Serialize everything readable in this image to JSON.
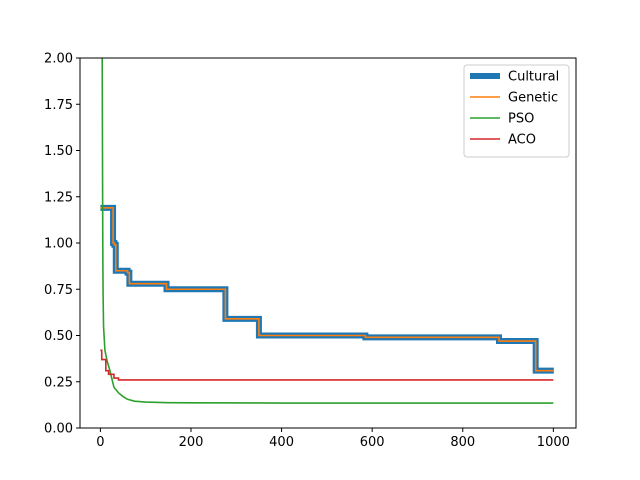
{
  "chart_data": {
    "type": "line",
    "title": "",
    "xlabel": "",
    "ylabel": "",
    "xlim": [
      -45,
      1050
    ],
    "ylim": [
      0.0,
      2.0
    ],
    "x_ticks": [
      0,
      200,
      400,
      600,
      800,
      1000
    ],
    "x_tick_labels": [
      "0",
      "200",
      "400",
      "600",
      "800",
      "1000"
    ],
    "y_ticks": [
      0.0,
      0.25,
      0.5,
      0.75,
      1.0,
      1.25,
      1.5,
      1.75,
      2.0
    ],
    "y_tick_labels": [
      "0.00",
      "0.25",
      "0.50",
      "0.75",
      "1.00",
      "1.25",
      "1.50",
      "1.75",
      "2.00"
    ],
    "grid": false,
    "legend_position": "top-right",
    "series": [
      {
        "name": "Cultural",
        "color": "#1f77b4",
        "points": [
          [
            0,
            1.19
          ],
          [
            28,
            1.19
          ],
          [
            28,
            1.0
          ],
          [
            31,
            1.0
          ],
          [
            31,
            0.99
          ],
          [
            34,
            0.99
          ],
          [
            34,
            0.85
          ],
          [
            60,
            0.85
          ],
          [
            60,
            0.84
          ],
          [
            64,
            0.84
          ],
          [
            64,
            0.78
          ],
          [
            146,
            0.78
          ],
          [
            146,
            0.75
          ],
          [
            276,
            0.75
          ],
          [
            276,
            0.59
          ],
          [
            350,
            0.59
          ],
          [
            350,
            0.5
          ],
          [
            585,
            0.5
          ],
          [
            585,
            0.49
          ],
          [
            880,
            0.49
          ],
          [
            880,
            0.47
          ],
          [
            961,
            0.47
          ],
          [
            961,
            0.31
          ],
          [
            1001,
            0.31
          ]
        ]
      },
      {
        "name": "Genetic",
        "color": "#ff7f0e",
        "points": [
          [
            0,
            1.19
          ],
          [
            28,
            1.19
          ],
          [
            28,
            1.0
          ],
          [
            31,
            1.0
          ],
          [
            31,
            0.99
          ],
          [
            34,
            0.99
          ],
          [
            34,
            0.85
          ],
          [
            60,
            0.85
          ],
          [
            60,
            0.84
          ],
          [
            64,
            0.84
          ],
          [
            64,
            0.78
          ],
          [
            146,
            0.78
          ],
          [
            146,
            0.75
          ],
          [
            276,
            0.75
          ],
          [
            276,
            0.59
          ],
          [
            350,
            0.59
          ],
          [
            350,
            0.5
          ],
          [
            585,
            0.5
          ],
          [
            585,
            0.49
          ],
          [
            880,
            0.49
          ],
          [
            880,
            0.47
          ],
          [
            961,
            0.47
          ],
          [
            961,
            0.31
          ],
          [
            1001,
            0.31
          ]
        ]
      },
      {
        "name": "PSO",
        "color": "#2ca02c",
        "points": [
          [
            4,
            2.0
          ],
          [
            4.5,
            1.6
          ],
          [
            5,
            1.2
          ],
          [
            5.5,
            0.9
          ],
          [
            6,
            0.72
          ],
          [
            7,
            0.55
          ],
          [
            10,
            0.42
          ],
          [
            15,
            0.36
          ],
          [
            20,
            0.32
          ],
          [
            25,
            0.27
          ],
          [
            30,
            0.22
          ],
          [
            40,
            0.19
          ],
          [
            50,
            0.17
          ],
          [
            60,
            0.155
          ],
          [
            75,
            0.145
          ],
          [
            100,
            0.14
          ],
          [
            150,
            0.137
          ],
          [
            200,
            0.136
          ],
          [
            400,
            0.135
          ],
          [
            1000,
            0.135
          ]
        ]
      },
      {
        "name": "ACO",
        "color": "#d62728",
        "points": [
          [
            0,
            0.42
          ],
          [
            3,
            0.42
          ],
          [
            3,
            0.37
          ],
          [
            12,
            0.37
          ],
          [
            12,
            0.31
          ],
          [
            18,
            0.31
          ],
          [
            18,
            0.29
          ],
          [
            30,
            0.29
          ],
          [
            30,
            0.27
          ],
          [
            40,
            0.27
          ],
          [
            40,
            0.26
          ],
          [
            1000,
            0.26
          ]
        ]
      }
    ]
  }
}
